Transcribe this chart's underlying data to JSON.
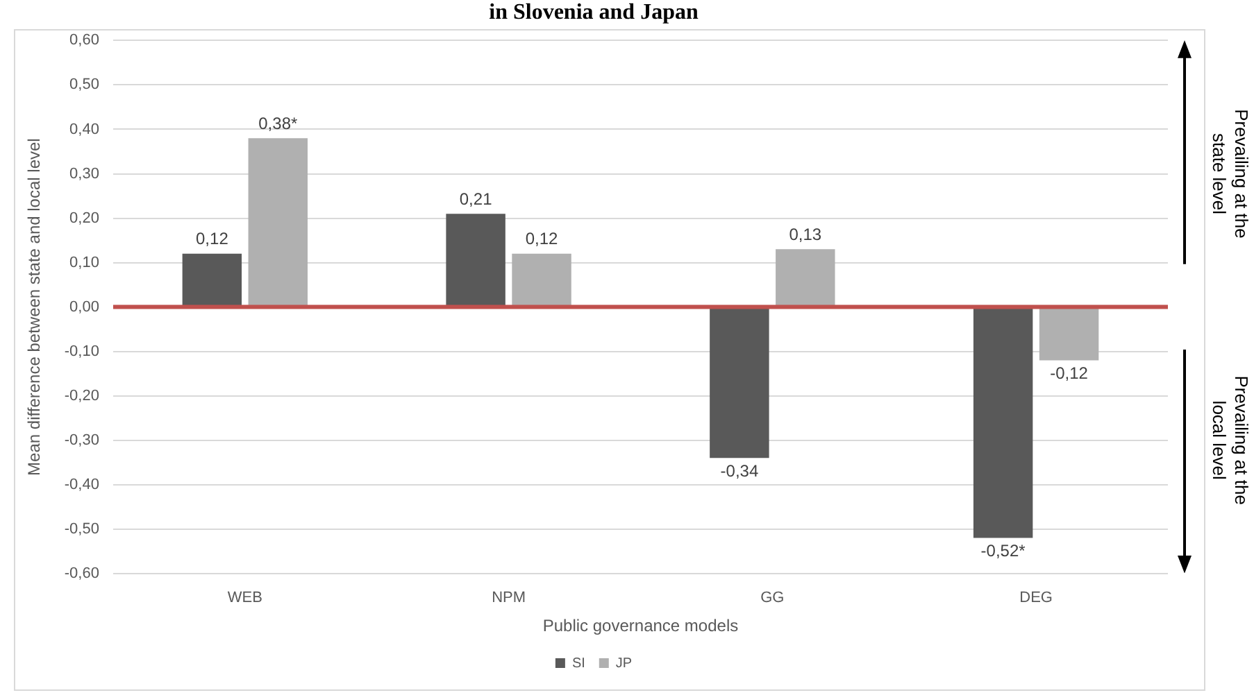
{
  "chart_data": {
    "type": "bar",
    "title": "in Slovenia and Japan",
    "xlabel": "Public governance models",
    "ylabel": "Mean difference between state and local level",
    "categories": [
      "WEB",
      "NPM",
      "GG",
      "DEG"
    ],
    "series": [
      {
        "name": "SI",
        "color": "#595959",
        "values": [
          0.12,
          0.21,
          -0.34,
          -0.52
        ],
        "value_labels": [
          "0,12",
          "0,21",
          "-0,34",
          "-0,52*"
        ]
      },
      {
        "name": "JP",
        "color": "#b0b0b0",
        "values": [
          0.38,
          0.12,
          0.13,
          -0.12
        ],
        "value_labels": [
          "0,38*",
          "0,12",
          "0,13",
          "-0,12"
        ]
      }
    ],
    "ylim": [
      -0.6,
      0.6
    ],
    "yticks": [
      {
        "value": -0.6,
        "label": "-0,60"
      },
      {
        "value": -0.5,
        "label": "-0,50"
      },
      {
        "value": -0.4,
        "label": "-0,40"
      },
      {
        "value": -0.3,
        "label": "-0,30"
      },
      {
        "value": -0.2,
        "label": "-0,20"
      },
      {
        "value": -0.1,
        "label": "-0,10"
      },
      {
        "value": 0,
        "label": "0,00"
      },
      {
        "value": 0.1,
        "label": "0,10"
      },
      {
        "value": 0.2,
        "label": "0,20"
      },
      {
        "value": 0.3,
        "label": "0,30"
      },
      {
        "value": 0.4,
        "label": "0,40"
      },
      {
        "value": 0.5,
        "label": "0,50"
      },
      {
        "value": 0.6,
        "label": "0,60"
      }
    ],
    "ref_lines": [
      {
        "axis": "y",
        "value": 0,
        "color": "#c0504d"
      }
    ],
    "annotations": [
      "Prevailing at the state level",
      "Prevailing at the local level"
    ],
    "grid": "y",
    "legend": "bottom"
  }
}
